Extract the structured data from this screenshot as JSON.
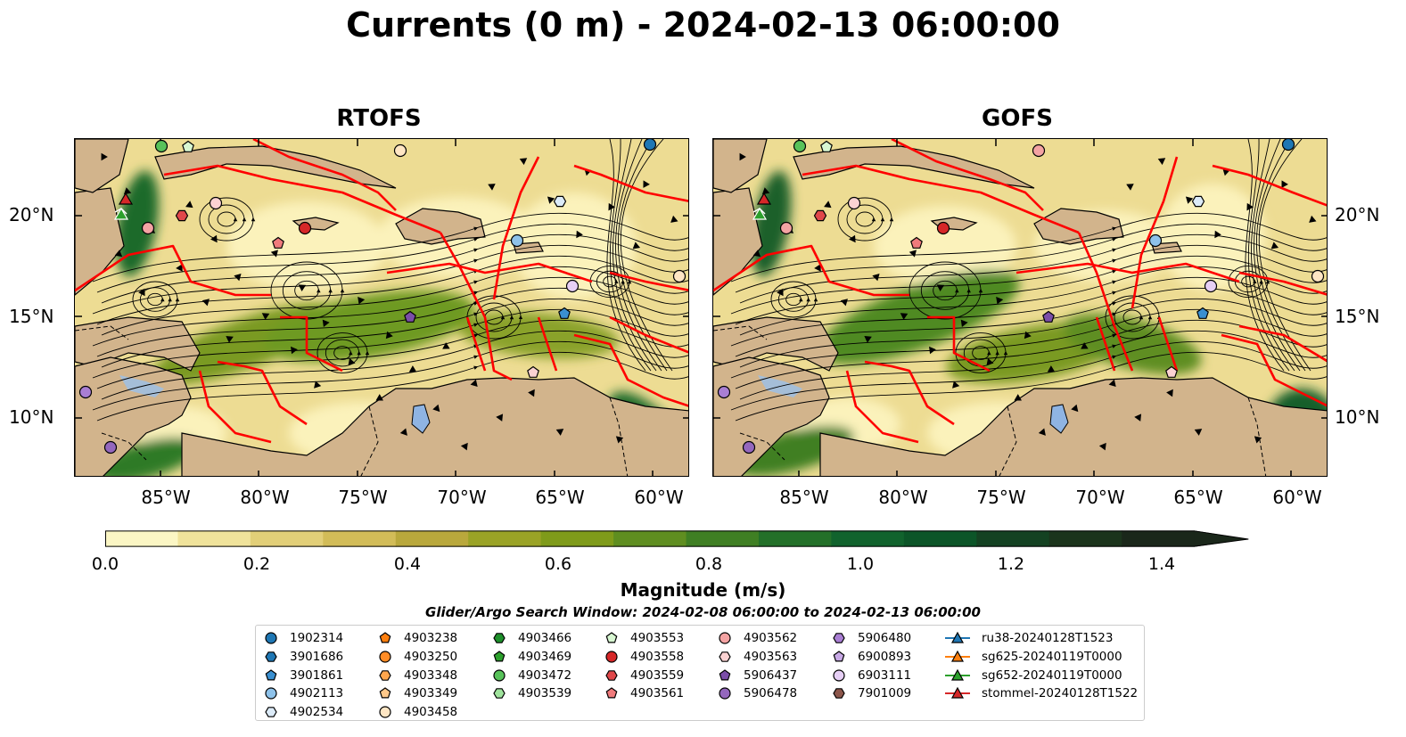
{
  "title": "Currents (0 m) - 2024-02-13 06:00:00",
  "panels": [
    {
      "title": "RTOFS"
    },
    {
      "title": "GOFS"
    }
  ],
  "lat_labels": [
    "20°N",
    "15°N",
    "10°N"
  ],
  "lon_labels": [
    "85°W",
    "80°W",
    "75°W",
    "70°W",
    "65°W",
    "60°W"
  ],
  "colorbar": {
    "label": "Magnitude (m/s)",
    "ticks": [
      "0.0",
      "0.2",
      "0.4",
      "0.6",
      "0.8",
      "1.0",
      "1.2",
      "1.4"
    ],
    "colors": [
      "#fbf6c4",
      "#f0e39b",
      "#e2cf78",
      "#d2bc58",
      "#b9a83c",
      "#9aa326",
      "#7f9b1a",
      "#5f8e20",
      "#3f7f23",
      "#237029",
      "#11632d",
      "#0c5528",
      "#144222",
      "#1b341c",
      "#1a271a"
    ],
    "extend": "max"
  },
  "search_window": "Glider/Argo Search Window: 2024-02-08 06:00:00 to 2024-02-13 06:00:00",
  "legend": [
    [
      {
        "label": "1902314",
        "marker": "circle",
        "color": "#1f77b4"
      },
      {
        "label": "3901686",
        "marker": "hexagon",
        "color": "#1f77b4"
      },
      {
        "label": "3901861",
        "marker": "pentagon",
        "color": "#3a8fd0"
      },
      {
        "label": "4902113",
        "marker": "circle",
        "color": "#8ec2ea"
      },
      {
        "label": "4902534",
        "marker": "hexagon",
        "color": "#dcebf8"
      }
    ],
    [
      {
        "label": "4903238",
        "marker": "pentagon",
        "color": "#ff7f0e"
      },
      {
        "label": "4903250",
        "marker": "circle",
        "color": "#ff8c26"
      },
      {
        "label": "4903348",
        "marker": "hexagon",
        "color": "#ffa64d"
      },
      {
        "label": "4903349",
        "marker": "pentagon",
        "color": "#ffc88a"
      },
      {
        "label": "4903458",
        "marker": "circle",
        "color": "#ffe6c4"
      }
    ],
    [
      {
        "label": "4903466",
        "marker": "hexagon",
        "color": "#1d8f2a"
      },
      {
        "label": "4903469",
        "marker": "pentagon",
        "color": "#2ca02c"
      },
      {
        "label": "4903472",
        "marker": "circle",
        "color": "#58c25a"
      },
      {
        "label": "4903539",
        "marker": "hexagon",
        "color": "#9fe39c"
      }
    ],
    [
      {
        "label": "4903553",
        "marker": "pentagon",
        "color": "#d8f7d2"
      },
      {
        "label": "4903558",
        "marker": "circle",
        "color": "#d62728"
      },
      {
        "label": "4903559",
        "marker": "hexagon",
        "color": "#e0474a"
      },
      {
        "label": "4903561",
        "marker": "pentagon",
        "color": "#f07b7c"
      }
    ],
    [
      {
        "label": "4903562",
        "marker": "circle",
        "color": "#f4a3a3"
      },
      {
        "label": "4903563",
        "marker": "hexagon",
        "color": "#fbd2d2"
      },
      {
        "label": "5906437",
        "marker": "pentagon",
        "color": "#7b4ea8"
      },
      {
        "label": "5906478",
        "marker": "circle",
        "color": "#9467bd"
      }
    ],
    [
      {
        "label": "5906480",
        "marker": "hexagon",
        "color": "#a97ed3"
      },
      {
        "label": "6900893",
        "marker": "pentagon",
        "color": "#c8a9e6"
      },
      {
        "label": "6903111",
        "marker": "circle",
        "color": "#e6cff5"
      },
      {
        "label": "7901009",
        "marker": "hexagon",
        "color": "#8c564b"
      }
    ],
    [
      {
        "label": "ru38-20240128T1523",
        "marker": "triangle-line",
        "color": "#1f77b4"
      },
      {
        "label": "sg625-20240119T0000",
        "marker": "triangle-line",
        "color": "#ff7f0e"
      },
      {
        "label": "sg652-20240119T0000",
        "marker": "triangle-line",
        "color": "#2ca02c"
      },
      {
        "label": "stommel-20240128T1522",
        "marker": "triangle-line",
        "color": "#d62728"
      }
    ]
  ]
}
